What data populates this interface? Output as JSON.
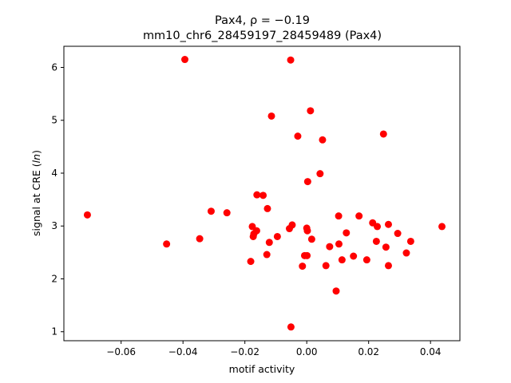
{
  "chart_data": {
    "type": "scatter",
    "title_line1": "Pax4, ρ = −0.19",
    "title_line2": "mm10_chr6_28459197_28459489 (Pax4)",
    "xlabel": "motif activity",
    "ylabel": "signal at CRE (ln)",
    "xlim": [
      -0.0785,
      0.0495
    ],
    "ylim": [
      0.83,
      6.4
    ],
    "xticks": [
      -0.06,
      -0.04,
      -0.02,
      0.0,
      0.02,
      0.04
    ],
    "xtick_labels": [
      "−0.06",
      "−0.04",
      "−0.02",
      "0.00",
      "0.02",
      "0.04"
    ],
    "yticks": [
      1,
      2,
      3,
      4,
      5,
      6
    ],
    "ytick_labels": [
      "1",
      "2",
      "3",
      "4",
      "5",
      "6"
    ],
    "grid": false,
    "marker_color": "#ff0000",
    "points": [
      {
        "x": -0.0709,
        "y": 3.21
      },
      {
        "x": -0.0453,
        "y": 2.66
      },
      {
        "x": -0.0394,
        "y": 6.15
      },
      {
        "x": -0.0346,
        "y": 2.76
      },
      {
        "x": -0.0309,
        "y": 3.28
      },
      {
        "x": -0.0258,
        "y": 3.25
      },
      {
        "x": -0.0181,
        "y": 2.33
      },
      {
        "x": -0.0176,
        "y": 2.99
      },
      {
        "x": -0.0173,
        "y": 2.8
      },
      {
        "x": -0.0171,
        "y": 2.85
      },
      {
        "x": -0.0162,
        "y": 2.91
      },
      {
        "x": -0.0161,
        "y": 3.59
      },
      {
        "x": -0.0141,
        "y": 3.58
      },
      {
        "x": -0.0129,
        "y": 2.46
      },
      {
        "x": -0.0127,
        "y": 3.33
      },
      {
        "x": -0.0121,
        "y": 2.69
      },
      {
        "x": -0.0114,
        "y": 5.08
      },
      {
        "x": -0.0095,
        "y": 2.8
      },
      {
        "x": -0.0056,
        "y": 2.95
      },
      {
        "x": -0.0052,
        "y": 6.14
      },
      {
        "x": -0.0051,
        "y": 1.09
      },
      {
        "x": -0.0047,
        "y": 3.02
      },
      {
        "x": -0.0029,
        "y": 4.7
      },
      {
        "x": -0.0014,
        "y": 2.24
      },
      {
        "x": -0.0007,
        "y": 2.44
      },
      {
        "x": 0.0,
        "y": 2.96
      },
      {
        "x": 0.0001,
        "y": 2.44
      },
      {
        "x": 0.0002,
        "y": 2.91
      },
      {
        "x": 0.0003,
        "y": 3.84
      },
      {
        "x": 0.0012,
        "y": 5.18
      },
      {
        "x": 0.0016,
        "y": 2.75
      },
      {
        "x": 0.0043,
        "y": 3.99
      },
      {
        "x": 0.0051,
        "y": 4.63
      },
      {
        "x": 0.0062,
        "y": 2.25
      },
      {
        "x": 0.0074,
        "y": 2.61
      },
      {
        "x": 0.0095,
        "y": 1.77
      },
      {
        "x": 0.0103,
        "y": 3.19
      },
      {
        "x": 0.0104,
        "y": 2.66
      },
      {
        "x": 0.0114,
        "y": 2.36
      },
      {
        "x": 0.0128,
        "y": 2.87
      },
      {
        "x": 0.0151,
        "y": 2.43
      },
      {
        "x": 0.0169,
        "y": 3.19
      },
      {
        "x": 0.0194,
        "y": 2.36
      },
      {
        "x": 0.0213,
        "y": 3.06
      },
      {
        "x": 0.0225,
        "y": 2.71
      },
      {
        "x": 0.0228,
        "y": 2.99
      },
      {
        "x": 0.0248,
        "y": 4.74
      },
      {
        "x": 0.0256,
        "y": 2.6
      },
      {
        "x": 0.0264,
        "y": 3.03
      },
      {
        "x": 0.0264,
        "y": 2.25
      },
      {
        "x": 0.0294,
        "y": 2.86
      },
      {
        "x": 0.0322,
        "y": 2.49
      },
      {
        "x": 0.0336,
        "y": 2.71
      },
      {
        "x": 0.0437,
        "y": 2.99
      }
    ]
  }
}
